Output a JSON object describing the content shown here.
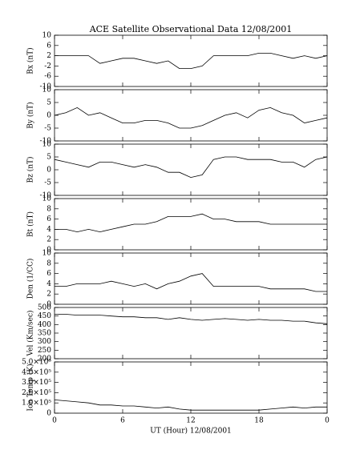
{
  "chart_data": [
    {
      "type": "line",
      "title": "ACE Satellite Observational Data   12/08/2001",
      "ylabel": "Bx (nT)",
      "color": "#000000",
      "x": [
        0,
        1,
        2,
        3,
        4,
        5,
        6,
        7,
        8,
        9,
        10,
        11,
        12,
        13,
        14,
        15,
        16,
        17,
        18,
        19,
        20,
        21,
        22,
        23,
        24
      ],
      "values": [
        2,
        2,
        2,
        2,
        -1,
        0,
        1,
        1,
        0,
        -1,
        0,
        -3,
        -3,
        -2,
        2,
        2,
        2,
        2,
        3,
        3,
        2,
        1,
        2,
        1,
        2
      ],
      "xlim": [
        0,
        24
      ],
      "ylim": [
        -10,
        10
      ],
      "yticks": [
        -10,
        -6,
        -2,
        2,
        6,
        10
      ]
    },
    {
      "type": "line",
      "ylabel": "By (nT)",
      "color": "#000000",
      "x": [
        0,
        1,
        2,
        3,
        4,
        5,
        6,
        7,
        8,
        9,
        10,
        11,
        12,
        13,
        14,
        15,
        16,
        17,
        18,
        19,
        20,
        21,
        22,
        23,
        24
      ],
      "values": [
        0,
        1,
        3,
        0,
        1,
        -1,
        -3,
        -3,
        -2,
        -2,
        -3,
        -5,
        -5,
        -4,
        -2,
        0,
        1,
        -1,
        2,
        3,
        1,
        0,
        -3,
        -2,
        -1
      ],
      "xlim": [
        0,
        24
      ],
      "ylim": [
        -10,
        10
      ],
      "yticks": [
        -10,
        -5,
        0,
        5,
        10
      ]
    },
    {
      "type": "line",
      "ylabel": "Bz (nT)",
      "color": "#000000",
      "x": [
        0,
        1,
        2,
        3,
        4,
        5,
        6,
        7,
        8,
        9,
        10,
        11,
        12,
        13,
        14,
        15,
        16,
        17,
        18,
        19,
        20,
        21,
        22,
        23,
        24
      ],
      "values": [
        4,
        3,
        2,
        1,
        3,
        3,
        2,
        1,
        2,
        1,
        -1,
        -1,
        -3,
        -2,
        4,
        5,
        5,
        4,
        4,
        4,
        3,
        3,
        1,
        4,
        5
      ],
      "xlim": [
        0,
        24
      ],
      "ylim": [
        -10,
        10
      ],
      "yticks": [
        -10,
        -5,
        0,
        5,
        10
      ]
    },
    {
      "type": "line",
      "ylabel": "Bt (nT)",
      "color": "#000000",
      "x": [
        0,
        1,
        2,
        3,
        4,
        5,
        6,
        7,
        8,
        9,
        10,
        11,
        12,
        13,
        14,
        15,
        16,
        17,
        18,
        19,
        20,
        21,
        22,
        23,
        24
      ],
      "values": [
        4,
        4,
        3.5,
        4,
        3.5,
        4,
        4.5,
        5,
        5,
        5.5,
        6.5,
        6.5,
        6.5,
        7,
        6,
        6,
        5.5,
        5.5,
        5.5,
        5,
        5,
        5,
        5,
        5,
        5
      ],
      "xlim": [
        0,
        24
      ],
      "ylim": [
        0,
        10
      ],
      "yticks": [
        0,
        2,
        4,
        6,
        8,
        10
      ]
    },
    {
      "type": "line",
      "ylabel": "Den (1/CC)",
      "color": "#000000",
      "x": [
        0,
        1,
        2,
        3,
        4,
        5,
        6,
        7,
        8,
        9,
        10,
        11,
        12,
        13,
        14,
        15,
        16,
        17,
        18,
        19,
        20,
        21,
        22,
        23,
        24
      ],
      "values": [
        3.5,
        3.5,
        4,
        4,
        4,
        4.5,
        4,
        3.5,
        4,
        3,
        4,
        4.5,
        5.5,
        6,
        3.5,
        3.5,
        3.5,
        3.5,
        3.5,
        3,
        3,
        3,
        3,
        2.5,
        2.5
      ],
      "xlim": [
        0,
        24
      ],
      "ylim": [
        0,
        10
      ],
      "yticks": [
        0,
        2,
        4,
        6,
        8,
        10
      ]
    },
    {
      "type": "line",
      "ylabel": "Vel (Km/sec)",
      "color": "#000000",
      "x": [
        0,
        1,
        2,
        3,
        4,
        5,
        6,
        7,
        8,
        9,
        10,
        11,
        12,
        13,
        14,
        15,
        16,
        17,
        18,
        19,
        20,
        21,
        22,
        23,
        24
      ],
      "values": [
        460,
        460,
        455,
        455,
        455,
        450,
        445,
        445,
        440,
        440,
        430,
        440,
        430,
        425,
        430,
        435,
        430,
        425,
        430,
        425,
        425,
        420,
        420,
        410,
        405
      ],
      "xlim": [
        0,
        24
      ],
      "ylim": [
        200,
        500
      ],
      "yticks": [
        200,
        250,
        300,
        350,
        400,
        450,
        500
      ]
    },
    {
      "type": "line",
      "ylabel": "Ion Temp (K)",
      "xlabel": "UT (Hour)  12/08/2001",
      "color": "#000000",
      "x": [
        0,
        1,
        2,
        3,
        4,
        5,
        6,
        7,
        8,
        9,
        10,
        11,
        12,
        13,
        14,
        15,
        16,
        17,
        18,
        19,
        20,
        21,
        22,
        23,
        24
      ],
      "values": [
        130000,
        120000,
        110000,
        100000,
        80000,
        80000,
        70000,
        70000,
        60000,
        50000,
        60000,
        40000,
        30000,
        30000,
        30000,
        30000,
        30000,
        30000,
        30000,
        40000,
        50000,
        60000,
        50000,
        60000,
        60000
      ],
      "xlim": [
        0,
        24
      ],
      "ylim": [
        0,
        500000
      ],
      "yticks": [
        0,
        {
          "value": 100000,
          "label": "1.0×10⁵"
        },
        {
          "value": 200000,
          "label": "2.0×10⁵"
        },
        {
          "value": 300000,
          "label": "3.0×10⁵"
        },
        {
          "value": 400000,
          "label": "4.0×10⁵"
        },
        {
          "value": 500000,
          "label": "5.0×10⁵"
        }
      ],
      "xticks": [
        0,
        6,
        12,
        18,
        {
          "value": 24,
          "label": "0"
        }
      ]
    }
  ]
}
